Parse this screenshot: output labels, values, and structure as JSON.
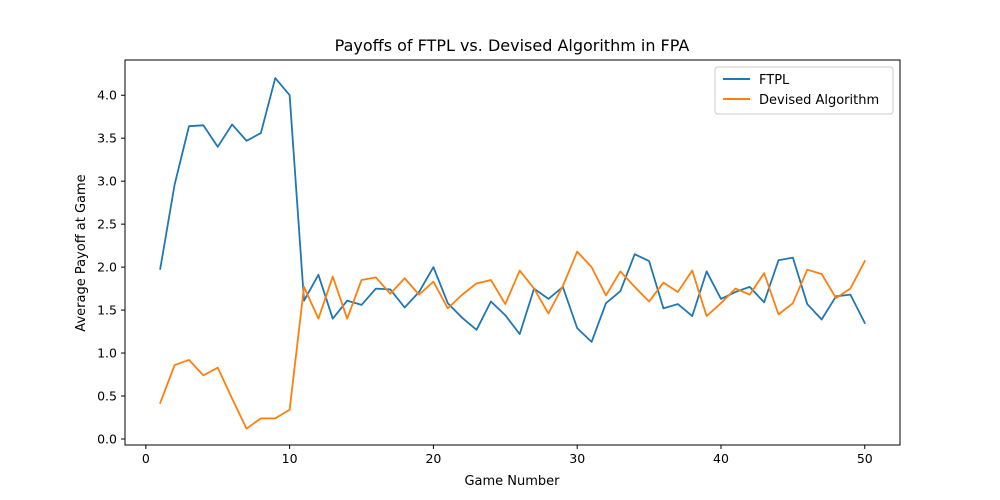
{
  "chart_data": {
    "type": "line",
    "title": "Payoffs of FTPL vs. Devised Algorithm in FPA",
    "xlabel": "Game Number",
    "ylabel": "Average Payoff at Game",
    "xlim": [
      -1.45,
      52.45
    ],
    "ylim": [
      -0.07,
      4.41
    ],
    "xticks": [
      0,
      10,
      20,
      30,
      40,
      50
    ],
    "xtick_labels": [
      "0",
      "10",
      "20",
      "30",
      "40",
      "50"
    ],
    "yticks": [
      0.0,
      0.5,
      1.0,
      1.5,
      2.0,
      2.5,
      3.0,
      3.5,
      4.0
    ],
    "ytick_labels": [
      "0.0",
      "0.5",
      "1.0",
      "1.5",
      "2.0",
      "2.5",
      "3.0",
      "3.5",
      "4.0"
    ],
    "grid": false,
    "legend_position": "top-right",
    "x": [
      1,
      2,
      3,
      4,
      5,
      6,
      7,
      8,
      9,
      10,
      11,
      12,
      13,
      14,
      15,
      16,
      17,
      18,
      19,
      20,
      21,
      22,
      23,
      24,
      25,
      26,
      27,
      28,
      29,
      30,
      31,
      32,
      33,
      34,
      35,
      36,
      37,
      38,
      39,
      40,
      41,
      42,
      43,
      44,
      45,
      46,
      47,
      48,
      49,
      50
    ],
    "series": [
      {
        "name": "FTPL",
        "color": "#1f77b4",
        "values": [
          1.98,
          2.96,
          3.64,
          3.65,
          3.4,
          3.66,
          3.47,
          3.56,
          4.2,
          4.0,
          1.61,
          1.91,
          1.4,
          1.61,
          1.56,
          1.75,
          1.74,
          1.53,
          1.71,
          2.0,
          1.58,
          1.41,
          1.27,
          1.6,
          1.44,
          1.22,
          1.75,
          1.63,
          1.77,
          1.29,
          1.13,
          1.58,
          1.72,
          2.15,
          2.07,
          1.52,
          1.57,
          1.43,
          1.95,
          1.63,
          1.71,
          1.77,
          1.59,
          2.08,
          2.11,
          1.57,
          1.39,
          1.66,
          1.68,
          1.35
        ]
      },
      {
        "name": "Devised Algorithm",
        "color": "#ff7f0e",
        "values": [
          0.42,
          0.86,
          0.92,
          0.74,
          0.83,
          0.47,
          0.12,
          0.24,
          0.24,
          0.34,
          1.77,
          1.4,
          1.89,
          1.4,
          1.85,
          1.88,
          1.69,
          1.87,
          1.68,
          1.83,
          1.52,
          1.68,
          1.81,
          1.85,
          1.57,
          1.96,
          1.75,
          1.46,
          1.78,
          2.18,
          2.0,
          1.67,
          1.95,
          1.77,
          1.6,
          1.82,
          1.71,
          1.96,
          1.43,
          1.58,
          1.75,
          1.68,
          1.93,
          1.45,
          1.58,
          1.97,
          1.92,
          1.64,
          1.75,
          2.07
        ]
      }
    ]
  }
}
